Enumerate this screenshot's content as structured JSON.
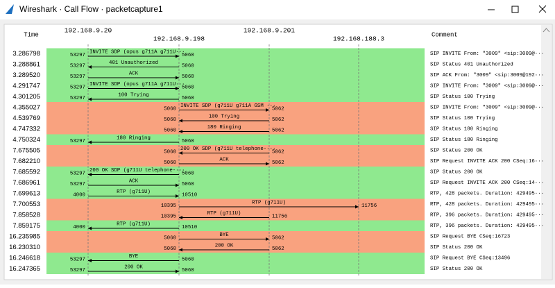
{
  "window": {
    "title": "Wireshark · Call Flow · packetcapture1"
  },
  "header": {
    "time": "Time",
    "comment": "Comment",
    "hosts": [
      "192.168.9.20",
      "192.168.9.198",
      "192.168.9.201",
      "192.168.188.3"
    ]
  },
  "rows": [
    {
      "time": "3.286798",
      "from": 0,
      "to": 1,
      "ports": [
        "53297",
        "5060"
      ],
      "label": "INVITE SDP (opus g711A g711U···",
      "comment": "SIP INVITE From: \"3009\" <sip:3009@···",
      "color": "#8fe98f"
    },
    {
      "time": "3.288861",
      "from": 1,
      "to": 0,
      "ports": [
        "53297",
        "5060"
      ],
      "label": "401 Unauthorized",
      "comment": "SIP Status 401 Unauthorized",
      "color": "#8fe98f"
    },
    {
      "time": "3.289520",
      "from": 0,
      "to": 1,
      "ports": [
        "53297",
        "5060"
      ],
      "label": "ACK",
      "comment": "SIP ACK From: \"3009\" <sip:3009@192···",
      "color": "#8fe98f"
    },
    {
      "time": "4.291747",
      "from": 0,
      "to": 1,
      "ports": [
        "53297",
        "5060"
      ],
      "label": "INVITE SDP (opus g711A g711U···",
      "comment": "SIP INVITE From: \"3009\" <sip:3009@···",
      "color": "#8fe98f"
    },
    {
      "time": "4.301205",
      "from": 1,
      "to": 0,
      "ports": [
        "53297",
        "5060"
      ],
      "label": "100 Trying",
      "comment": "SIP Status 100 Trying",
      "color": "#8fe98f"
    },
    {
      "time": "4.355027",
      "from": 1,
      "to": 2,
      "ports": [
        "5060",
        "5062"
      ],
      "label": "INVITE SDP (g711U g711A GSM ···",
      "comment": "SIP INVITE From: \"3009\" <sip:3009@···",
      "color": "#f9a27f"
    },
    {
      "time": "4.539769",
      "from": 2,
      "to": 1,
      "ports": [
        "5060",
        "5062"
      ],
      "label": "100 Trying",
      "comment": "SIP Status 100 Trying",
      "color": "#f9a27f"
    },
    {
      "time": "4.747332",
      "from": 2,
      "to": 1,
      "ports": [
        "5060",
        "5062"
      ],
      "label": "180 Ringing",
      "comment": "SIP Status 180 Ringing",
      "color": "#f9a27f"
    },
    {
      "time": "4.750324",
      "from": 1,
      "to": 0,
      "ports": [
        "53297",
        "5060"
      ],
      "label": "180 Ringing",
      "comment": "SIP Status 180 Ringing",
      "color": "#8fe98f"
    },
    {
      "time": "7.675505",
      "from": 2,
      "to": 1,
      "ports": [
        "5060",
        "5062"
      ],
      "label": "200 OK SDP (g711U telephone-···",
      "comment": "SIP Status 200 OK",
      "color": "#f9a27f"
    },
    {
      "time": "7.682210",
      "from": 1,
      "to": 2,
      "ports": [
        "5060",
        "5062"
      ],
      "label": "ACK",
      "comment": "SIP Request INVITE ACK 200 CSeq:16···",
      "color": "#f9a27f"
    },
    {
      "time": "7.685592",
      "from": 1,
      "to": 0,
      "ports": [
        "53297",
        "5060"
      ],
      "label": "200 OK SDP (g711U telephone-···",
      "comment": "SIP Status 200 OK",
      "color": "#8fe98f"
    },
    {
      "time": "7.686961",
      "from": 0,
      "to": 1,
      "ports": [
        "53297",
        "5060"
      ],
      "label": "ACK",
      "comment": "SIP Request INVITE ACK 200 CSeq:14···",
      "color": "#8fe98f"
    },
    {
      "time": "7.699613",
      "from": 0,
      "to": 1,
      "ports": [
        "4000",
        "10510"
      ],
      "label": "RTP (g711U)",
      "comment": "RTP, 428 packets. Duration: 429495···",
      "color": "#8fe98f"
    },
    {
      "time": "7.700553",
      "from": 1,
      "to": 3,
      "ports": [
        "10395",
        "11756"
      ],
      "label": "RTP (g711U)",
      "comment": "RTP, 428 packets. Duration: 429495···",
      "color": "#f9a27f"
    },
    {
      "time": "7.858528",
      "from": 2,
      "to": 1,
      "ports": [
        "10395",
        "11756"
      ],
      "label": "RTP (g711U)",
      "comment": "RTP, 396 packets. Duration: 429495···",
      "color": "#f9a27f"
    },
    {
      "time": "7.859175",
      "from": 1,
      "to": 0,
      "ports": [
        "4000",
        "10510"
      ],
      "label": "RTP (g711U)",
      "comment": "RTP, 396 packets. Duration: 429495···",
      "color": "#8fe98f"
    },
    {
      "time": "16.235985",
      "from": 1,
      "to": 2,
      "ports": [
        "5060",
        "5062"
      ],
      "label": "BYE",
      "comment": "SIP Request BYE CSeq:16723",
      "color": "#f9a27f"
    },
    {
      "time": "16.230310",
      "from": 2,
      "to": 1,
      "ports": [
        "5060",
        "5062"
      ],
      "label": "200 OK",
      "comment": "SIP Status 200 OK",
      "color": "#f9a27f"
    },
    {
      "time": "16.246618",
      "from": 1,
      "to": 0,
      "ports": [
        "53297",
        "5060"
      ],
      "label": "BYE",
      "comment": "SIP Request BYE CSeq:13496",
      "color": "#8fe98f"
    },
    {
      "time": "16.247365",
      "from": 0,
      "to": 1,
      "ports": [
        "53297",
        "5060"
      ],
      "label": "200 OK",
      "comment": "SIP Status 200 OK",
      "color": "#8fe98f"
    }
  ]
}
